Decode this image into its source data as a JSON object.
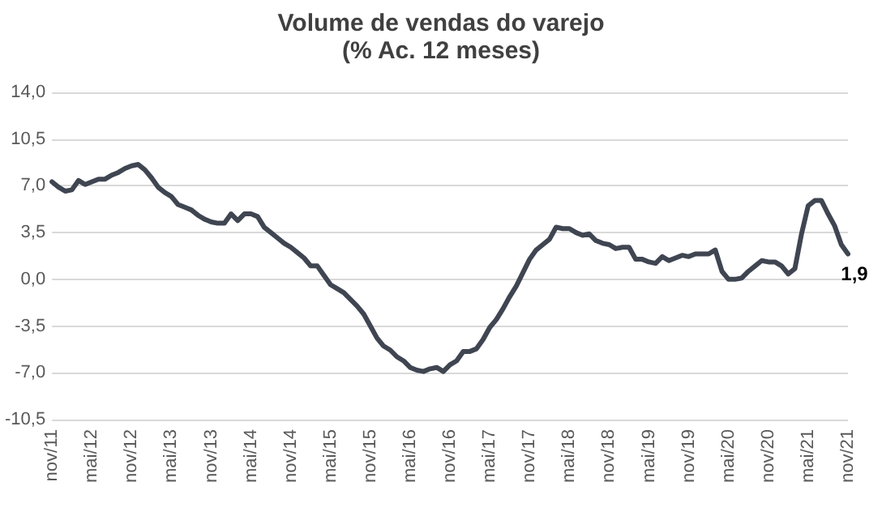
{
  "chart_data": {
    "type": "line",
    "title": "Volume de vendas do varejo",
    "subtitle": "(% Ac. 12 meses)",
    "categories": [
      "nov/11",
      null,
      null,
      null,
      null,
      null,
      "mai/12",
      null,
      null,
      null,
      null,
      null,
      "nov/12",
      null,
      null,
      null,
      null,
      null,
      "mai/13",
      null,
      null,
      null,
      null,
      null,
      "nov/13",
      null,
      null,
      null,
      null,
      null,
      "mai/14",
      null,
      null,
      null,
      null,
      null,
      "nov/14",
      null,
      null,
      null,
      null,
      null,
      "mai/15",
      null,
      null,
      null,
      null,
      null,
      "nov/15",
      null,
      null,
      null,
      null,
      null,
      "mai/16",
      null,
      null,
      null,
      null,
      null,
      "nov/16",
      null,
      null,
      null,
      null,
      null,
      "mai/17",
      null,
      null,
      null,
      null,
      null,
      "nov/17",
      null,
      null,
      null,
      null,
      null,
      "mai/18",
      null,
      null,
      null,
      null,
      null,
      "nov/18",
      null,
      null,
      null,
      null,
      null,
      "mai/19",
      null,
      null,
      null,
      null,
      null,
      "nov/19",
      null,
      null,
      null,
      null,
      null,
      "mai/20",
      null,
      null,
      null,
      null,
      null,
      "nov/20",
      null,
      null,
      null,
      null,
      null,
      "mai/21",
      null,
      null,
      null,
      null,
      null,
      "nov/21"
    ],
    "series": [
      {
        "color": "#3f4551",
        "values": [
          7.3,
          6.9,
          6.6,
          6.7,
          7.4,
          7.1,
          7.3,
          7.5,
          7.5,
          7.8,
          8.0,
          8.3,
          8.5,
          8.6,
          8.2,
          7.6,
          6.9,
          6.5,
          6.2,
          5.6,
          5.4,
          5.2,
          4.8,
          4.5,
          4.3,
          4.2,
          4.2,
          4.9,
          4.4,
          4.9,
          4.9,
          4.7,
          3.9,
          3.5,
          3.1,
          2.7,
          2.4,
          2.0,
          1.6,
          1.0,
          1.0,
          0.3,
          -0.4,
          -0.7,
          -1.0,
          -1.5,
          -2.0,
          -2.6,
          -3.5,
          -4.4,
          -5.0,
          -5.3,
          -5.8,
          -6.1,
          -6.6,
          -6.8,
          -6.9,
          -6.7,
          -6.6,
          -6.9,
          -6.4,
          -6.1,
          -5.4,
          -5.4,
          -5.2,
          -4.5,
          -3.6,
          -3.0,
          -2.2,
          -1.3,
          -0.5,
          0.5,
          1.5,
          2.2,
          2.6,
          3.0,
          3.9,
          3.8,
          3.8,
          3.5,
          3.3,
          3.4,
          2.9,
          2.7,
          2.6,
          2.3,
          2.4,
          2.4,
          1.5,
          1.5,
          1.3,
          1.2,
          1.7,
          1.4,
          1.6,
          1.8,
          1.7,
          1.9,
          1.9,
          1.9,
          2.2,
          0.6,
          0.0,
          0.0,
          0.1,
          0.6,
          1.0,
          1.4,
          1.3,
          1.3,
          1.0,
          0.4,
          0.8,
          3.4,
          5.5,
          5.9,
          5.9,
          4.9,
          4.0,
          2.6,
          1.9
        ],
        "value_labels": [
          null,
          null,
          null,
          null,
          null,
          null,
          null,
          null,
          null,
          null,
          null,
          null,
          null,
          null,
          null,
          null,
          null,
          null,
          null,
          null,
          null,
          null,
          null,
          null,
          null,
          null,
          null,
          null,
          null,
          null,
          null,
          null,
          null,
          null,
          null,
          null,
          null,
          null,
          null,
          null,
          null,
          null,
          null,
          null,
          null,
          null,
          null,
          null,
          null,
          null,
          null,
          null,
          null,
          null,
          null,
          null,
          null,
          null,
          null,
          null,
          null,
          null,
          null,
          null,
          null,
          null,
          null,
          null,
          null,
          null,
          null,
          null,
          null,
          null,
          null,
          null,
          null,
          null,
          null,
          null,
          null,
          null,
          null,
          null,
          null,
          null,
          null,
          null,
          null,
          null,
          null,
          null,
          null,
          null,
          null,
          null,
          null,
          null,
          null,
          null,
          null,
          null,
          null,
          null,
          null,
          null,
          null,
          null,
          null,
          null,
          null,
          null,
          null,
          null,
          null,
          null,
          null,
          null,
          null,
          null,
          "1,9"
        ]
      }
    ],
    "ylim": [
      -10.5,
      14.0
    ],
    "yticks": [
      {
        "value": -10.5,
        "label": "-10,5"
      },
      {
        "value": -7.0,
        "label": "-7,0"
      },
      {
        "value": -3.5,
        "label": "-3,5"
      },
      {
        "value": 0.0,
        "label": "0,0"
      },
      {
        "value": 3.5,
        "label": "3,5"
      },
      {
        "value": 7.0,
        "label": "7,0"
      },
      {
        "value": 10.5,
        "label": "10,5"
      },
      {
        "value": 14.0,
        "label": "14,0"
      }
    ],
    "grid": "y",
    "marker": "none",
    "line_style": "solid"
  }
}
